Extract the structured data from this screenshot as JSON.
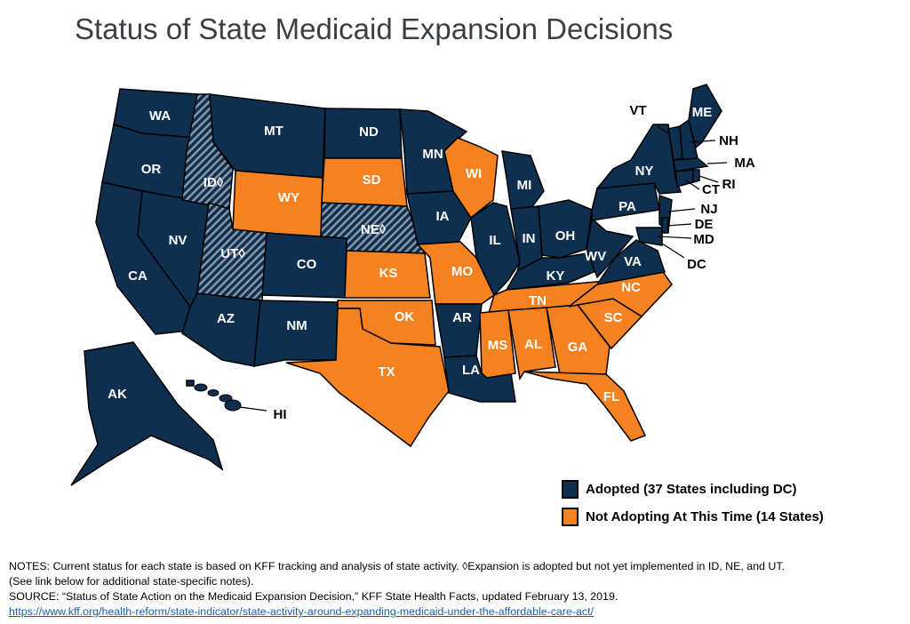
{
  "title": "Status of State Medicaid Expansion Decisions",
  "colors": {
    "adopted": "#0f2f50",
    "not_adopting": "#f58220",
    "hatch": "#8a96a4"
  },
  "legend": [
    {
      "status": "adopted",
      "label": "Adopted (37 States including DC)"
    },
    {
      "status": "not_adopting",
      "label": "Not Adopting At This Time (14 States)"
    }
  ],
  "states": [
    {
      "abbr": "WA",
      "label": "WA",
      "status": "adopted"
    },
    {
      "abbr": "OR",
      "label": "OR",
      "status": "adopted"
    },
    {
      "abbr": "CA",
      "label": "CA",
      "status": "adopted"
    },
    {
      "abbr": "NV",
      "label": "NV",
      "status": "adopted"
    },
    {
      "abbr": "ID",
      "label": "ID◊",
      "status": "adopted_not_implemented"
    },
    {
      "abbr": "MT",
      "label": "MT",
      "status": "adopted"
    },
    {
      "abbr": "WY",
      "label": "WY",
      "status": "not_adopting"
    },
    {
      "abbr": "UT",
      "label": "UT◊",
      "status": "adopted_not_implemented"
    },
    {
      "abbr": "CO",
      "label": "CO",
      "status": "adopted"
    },
    {
      "abbr": "AZ",
      "label": "AZ",
      "status": "adopted"
    },
    {
      "abbr": "NM",
      "label": "NM",
      "status": "adopted"
    },
    {
      "abbr": "ND",
      "label": "ND",
      "status": "adopted"
    },
    {
      "abbr": "SD",
      "label": "SD",
      "status": "not_adopting"
    },
    {
      "abbr": "NE",
      "label": "NE◊",
      "status": "adopted_not_implemented"
    },
    {
      "abbr": "KS",
      "label": "KS",
      "status": "not_adopting"
    },
    {
      "abbr": "OK",
      "label": "OK",
      "status": "not_adopting"
    },
    {
      "abbr": "TX",
      "label": "TX",
      "status": "not_adopting"
    },
    {
      "abbr": "MN",
      "label": "MN",
      "status": "adopted"
    },
    {
      "abbr": "IA",
      "label": "IA",
      "status": "adopted"
    },
    {
      "abbr": "MO",
      "label": "MO",
      "status": "not_adopting"
    },
    {
      "abbr": "AR",
      "label": "AR",
      "status": "adopted"
    },
    {
      "abbr": "LA",
      "label": "LA",
      "status": "adopted"
    },
    {
      "abbr": "WI",
      "label": "WI",
      "status": "not_adopting"
    },
    {
      "abbr": "IL",
      "label": "IL",
      "status": "adopted"
    },
    {
      "abbr": "MI",
      "label": "MI",
      "status": "adopted"
    },
    {
      "abbr": "IN",
      "label": "IN",
      "status": "adopted"
    },
    {
      "abbr": "OH",
      "label": "OH",
      "status": "adopted"
    },
    {
      "abbr": "KY",
      "label": "KY",
      "status": "adopted"
    },
    {
      "abbr": "TN",
      "label": "TN",
      "status": "not_adopting"
    },
    {
      "abbr": "MS",
      "label": "MS",
      "status": "not_adopting"
    },
    {
      "abbr": "AL",
      "label": "AL",
      "status": "not_adopting"
    },
    {
      "abbr": "GA",
      "label": "GA",
      "status": "not_adopting"
    },
    {
      "abbr": "FL",
      "label": "FL",
      "status": "not_adopting"
    },
    {
      "abbr": "SC",
      "label": "SC",
      "status": "not_adopting"
    },
    {
      "abbr": "NC",
      "label": "NC",
      "status": "not_adopting"
    },
    {
      "abbr": "VA",
      "label": "VA",
      "status": "adopted"
    },
    {
      "abbr": "WV",
      "label": "WV",
      "status": "adopted"
    },
    {
      "abbr": "PA",
      "label": "PA",
      "status": "adopted"
    },
    {
      "abbr": "NY",
      "label": "NY",
      "status": "adopted"
    },
    {
      "abbr": "NJ",
      "label": "NJ",
      "status": "adopted"
    },
    {
      "abbr": "DE",
      "label": "DE",
      "status": "adopted"
    },
    {
      "abbr": "MD",
      "label": "MD",
      "status": "adopted"
    },
    {
      "abbr": "DC",
      "label": "DC",
      "status": "adopted"
    },
    {
      "abbr": "VT",
      "label": "VT",
      "status": "adopted"
    },
    {
      "abbr": "NH",
      "label": "NH",
      "status": "adopted"
    },
    {
      "abbr": "ME",
      "label": "ME",
      "status": "adopted"
    },
    {
      "abbr": "MA",
      "label": "MA",
      "status": "adopted"
    },
    {
      "abbr": "CT",
      "label": "CT",
      "status": "adopted"
    },
    {
      "abbr": "RI",
      "label": "RI",
      "status": "adopted"
    },
    {
      "abbr": "AK",
      "label": "AK",
      "status": "adopted"
    },
    {
      "abbr": "HI",
      "label": "HI",
      "status": "adopted"
    }
  ],
  "notes": {
    "line1": "NOTES: Current status for each state is based on KFF tracking and analysis of state activity. ◊Expansion is adopted but not yet implemented in ID, NE, and UT.",
    "line2": "(See link below for additional state-specific notes).",
    "source": "SOURCE: “Status of State Action on the Medicaid Expansion Decision,” KFF State Health Facts, updated February 13, 2019.",
    "link": "https://www.kff.org/health-reform/state-indicator/state-activity-around-expanding-medicaid-under-the-affordable-care-act/"
  }
}
